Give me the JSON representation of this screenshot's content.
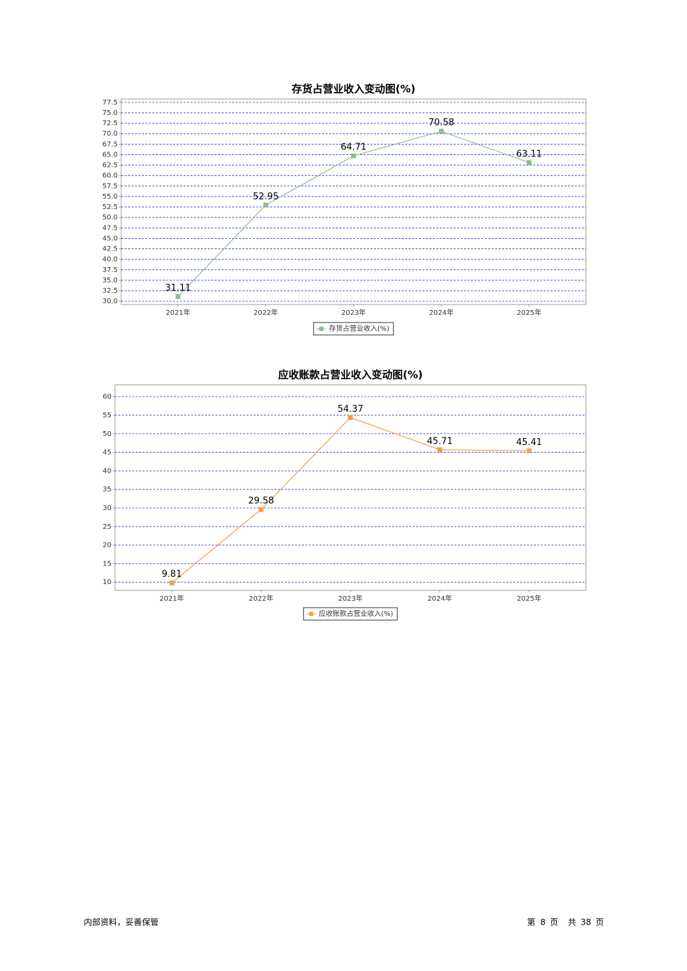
{
  "chart_data": [
    {
      "type": "line",
      "title": "存货占营业收入变动图(%)",
      "categories": [
        "2021年",
        "2022年",
        "2023年",
        "2024年",
        "2025年"
      ],
      "series": [
        {
          "name": "存货占营业收入(%)",
          "color": "#8fbc8f",
          "values": [
            31.11,
            52.95,
            64.71,
            70.58,
            63.11
          ]
        }
      ],
      "ylim": [
        29.2,
        78.3
      ],
      "yticks": [
        {
          "value": 30,
          "label": "30.0"
        },
        32.5,
        {
          "value": 35,
          "label": "35.0"
        },
        37.5,
        {
          "value": 40,
          "label": "40.0"
        },
        42.5,
        {
          "value": 45,
          "label": "45.0"
        },
        47.5,
        {
          "value": 50,
          "label": "50.0"
        },
        52.5,
        {
          "value": 55,
          "label": "55.0"
        },
        57.5,
        {
          "value": 60,
          "label": "60.0"
        },
        62.5,
        {
          "value": 65,
          "label": "65.0"
        },
        67.5,
        {
          "value": 70,
          "label": "70.0"
        },
        72.5,
        {
          "value": 75,
          "label": "75.0"
        },
        77.5
      ],
      "grid": true
    },
    {
      "type": "line",
      "title": "应收账款占营业收入变动图(%)",
      "categories": [
        "2021年",
        "2022年",
        "2023年",
        "2024年",
        "2025年"
      ],
      "series": [
        {
          "name": "应收账款占营业收入(%)",
          "color": "#f0a04b",
          "values": [
            9.81,
            29.58,
            54.37,
            45.71,
            45.41
          ]
        }
      ],
      "ylim": [
        7.8,
        63.2
      ],
      "yticks": [
        10,
        15,
        20,
        25,
        30,
        35,
        40,
        45,
        50,
        55,
        60
      ],
      "grid": true
    }
  ],
  "footer": {
    "left": "内部资料，妥善保管",
    "page": [
      "第",
      8,
      "页",
      "共",
      38,
      "页"
    ]
  }
}
